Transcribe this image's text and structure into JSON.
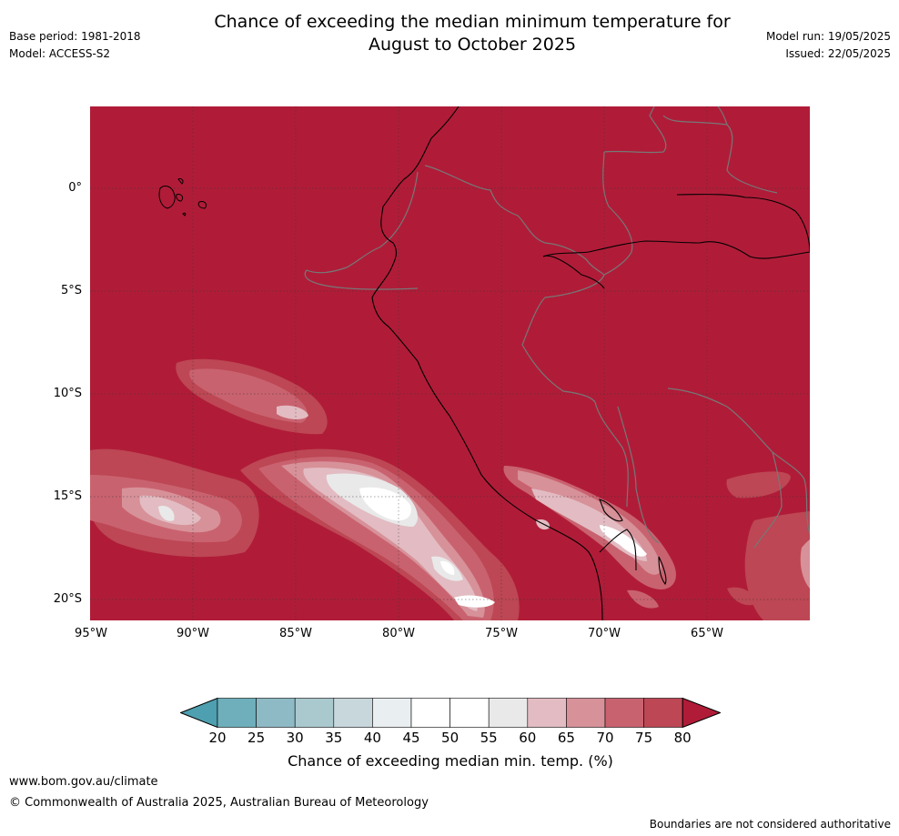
{
  "title_line1": "Chance of exceeding the median minimum temperature for",
  "title_line2": "August to October 2025",
  "meta": {
    "base_period": "Base period: 1981-2018",
    "model": "Model: ACCESS-S2",
    "model_run": "Model run: 19/05/2025",
    "issued": "Issued: 22/05/2025"
  },
  "map": {
    "background_color": "#b01c38",
    "lat_labels": [
      "0°",
      "5°S",
      "10°S",
      "15°S",
      "20°S"
    ],
    "lon_labels": [
      "95°W",
      "90°W",
      "85°W",
      "80°W",
      "75°W",
      "70°W",
      "65°W"
    ]
  },
  "colorbar": {
    "ticks": [
      "20",
      "25",
      "30",
      "35",
      "40",
      "45",
      "50",
      "55",
      "60",
      "65",
      "70",
      "75",
      "80"
    ],
    "colors": [
      "#6eafbb",
      "#8ebac5",
      "#aac9cf",
      "#c7d7dc",
      "#e9eef0",
      "#ffffff",
      "#ffffff",
      "#e9e9ea",
      "#e2bcc2",
      "#d79199",
      "#c9626f",
      "#bd4754"
    ],
    "low_color": "#4e9faf",
    "high_color": "#b01c38",
    "label": "Chance of exceeding median min. temp. (%)"
  },
  "footer": {
    "url": "www.bom.gov.au/climate",
    "copyright": "© Commonwealth of Australia 2025, Australian Bureau of Meteorology",
    "disclaimer": "Boundaries are not considered authoritative"
  }
}
